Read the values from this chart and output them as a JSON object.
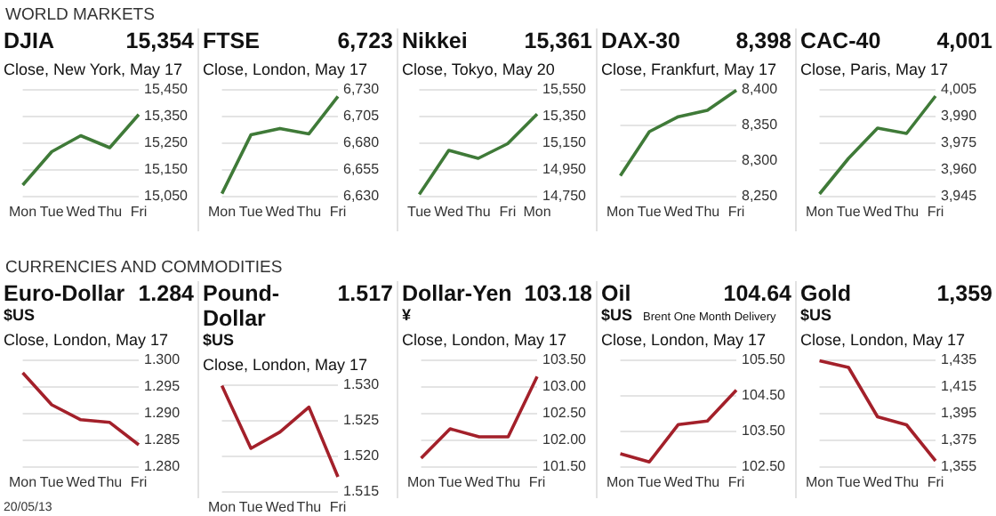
{
  "chart_data": [
    {
      "type": "line",
      "title": "DJIA",
      "subtitle": "Close, New York, May 17",
      "annotations": [
        "15,354",
        "WORLD MARKETS"
      ],
      "categories": [
        "Mon",
        "Tue",
        "Wed",
        "Thu",
        "Fri"
      ],
      "series": [
        {
          "color": "#3f7a38",
          "values": [
            15090,
            15215,
            15275,
            15230,
            15354
          ]
        }
      ],
      "ylim": [
        15050,
        15450
      ],
      "yticks": [
        {
          "value": 15050,
          "label": "15,050"
        },
        {
          "value": 15150,
          "label": "15,150"
        },
        {
          "value": 15250,
          "label": "15,250"
        },
        {
          "value": 15350,
          "label": "15,350"
        },
        {
          "value": 15450,
          "label": "15,450"
        }
      ],
      "grid": "y"
    },
    {
      "type": "line",
      "title": "FTSE",
      "subtitle": "Close, London, May 17",
      "annotations": [
        "6,723"
      ],
      "categories": [
        "Mon",
        "Tue",
        "Wed",
        "Thu",
        "Fri"
      ],
      "series": [
        {
          "color": "#3f7a38",
          "values": [
            6632,
            6687,
            6693,
            6688,
            6723
          ]
        }
      ],
      "ylim": [
        6630,
        6730
      ],
      "yticks": [
        {
          "value": 6630,
          "label": "6,630"
        },
        {
          "value": 6655,
          "label": "6,655"
        },
        {
          "value": 6680,
          "label": "6,680"
        },
        {
          "value": 6705,
          "label": "6,705"
        },
        {
          "value": 6730,
          "label": "6,730"
        }
      ],
      "grid": "y"
    },
    {
      "type": "line",
      "title": "Nikkei",
      "subtitle": "Close, Tokyo, May 20",
      "annotations": [
        "15,361"
      ],
      "categories": [
        "Tue",
        "Wed",
        "Thu",
        "Fri",
        "Mon"
      ],
      "series": [
        {
          "color": "#3f7a38",
          "values": [
            14760,
            15090,
            15030,
            15140,
            15361
          ]
        }
      ],
      "ylim": [
        14750,
        15550
      ],
      "yticks": [
        {
          "value": 14750,
          "label": "14,750"
        },
        {
          "value": 14950,
          "label": "14,950"
        },
        {
          "value": 15150,
          "label": "15,150"
        },
        {
          "value": 15350,
          "label": "15,350"
        },
        {
          "value": 15550,
          "label": "15,550"
        }
      ],
      "grid": "y"
    },
    {
      "type": "line",
      "title": "DAX-30",
      "subtitle": "Close, Frankfurt, May 17",
      "annotations": [
        "8,398"
      ],
      "categories": [
        "Mon",
        "Tue",
        "Wed",
        "Thu",
        "Fri"
      ],
      "series": [
        {
          "color": "#3f7a38",
          "values": [
            8278,
            8340,
            8361,
            8370,
            8398
          ]
        }
      ],
      "ylim": [
        8250,
        8400
      ],
      "yticks": [
        {
          "value": 8250,
          "label": "8,250"
        },
        {
          "value": 8300,
          "label": "8,300"
        },
        {
          "value": 8350,
          "label": "8,350"
        },
        {
          "value": 8400,
          "label": "8,400"
        }
      ],
      "grid": "y"
    },
    {
      "type": "line",
      "title": "CAC-40",
      "subtitle": "Close, Paris, May 17",
      "annotations": [
        "4,001"
      ],
      "categories": [
        "Mon",
        "Tue",
        "Wed",
        "Thu",
        "Fri"
      ],
      "series": [
        {
          "color": "#3f7a38",
          "values": [
            3946,
            3966,
            3983,
            3980,
            4001
          ]
        }
      ],
      "ylim": [
        3945,
        4005
      ],
      "yticks": [
        {
          "value": 3945,
          "label": "3,945"
        },
        {
          "value": 3960,
          "label": "3,960"
        },
        {
          "value": 3975,
          "label": "3,975"
        },
        {
          "value": 3990,
          "label": "3,990"
        },
        {
          "value": 4005,
          "label": "4,005"
        }
      ],
      "grid": "y"
    },
    {
      "type": "line",
      "title": "Euro-Dollar",
      "subtitle": "Close, London, May 17",
      "annotations": [
        "1.284",
        "$US",
        "CURRENCIES AND COMMODITIES",
        "20/05/13"
      ],
      "categories": [
        "Mon",
        "Tue",
        "Wed",
        "Thu",
        "Fri"
      ],
      "series": [
        {
          "color": "#a3202a",
          "values": [
            1.2975,
            1.2915,
            1.2887,
            1.2882,
            1.284
          ]
        }
      ],
      "ylim": [
        1.28,
        1.3
      ],
      "yticks": [
        {
          "value": 1.28,
          "label": "1.280"
        },
        {
          "value": 1.285,
          "label": "1.285"
        },
        {
          "value": 1.29,
          "label": "1.290"
        },
        {
          "value": 1.295,
          "label": "1.295"
        },
        {
          "value": 1.3,
          "label": "1.300"
        }
      ],
      "grid": "y"
    },
    {
      "type": "line",
      "title": "Pound-Dollar",
      "subtitle": "Close, London, May 17",
      "annotations": [
        "1.517",
        "$US"
      ],
      "categories": [
        "Mon",
        "Tue",
        "Wed",
        "Thu",
        "Fri"
      ],
      "series": [
        {
          "color": "#a3202a",
          "values": [
            1.5298,
            1.521,
            1.5233,
            1.5268,
            1.517
          ]
        }
      ],
      "ylim": [
        1.515,
        1.53
      ],
      "yticks": [
        {
          "value": 1.515,
          "label": "1.515"
        },
        {
          "value": 1.52,
          "label": "1.520"
        },
        {
          "value": 1.525,
          "label": "1.525"
        },
        {
          "value": 1.53,
          "label": "1.530"
        }
      ],
      "grid": "y"
    },
    {
      "type": "line",
      "title": "Dollar-Yen",
      "subtitle": "Close, London, May 17",
      "annotations": [
        "103.18",
        "¥"
      ],
      "categories": [
        "Mon",
        "Tue",
        "Wed",
        "Thu",
        "Fri"
      ],
      "series": [
        {
          "color": "#a3202a",
          "values": [
            101.65,
            102.2,
            102.05,
            102.05,
            103.18
          ]
        }
      ],
      "ylim": [
        101.5,
        103.5
      ],
      "yticks": [
        {
          "value": 101.5,
          "label": "101.50"
        },
        {
          "value": 102,
          "label": "102.00"
        },
        {
          "value": 102.5,
          "label": "102.50"
        },
        {
          "value": 103,
          "label": "103.00"
        },
        {
          "value": 103.5,
          "label": "103.50"
        }
      ],
      "grid": "y"
    },
    {
      "type": "line",
      "title": "Oil",
      "subtitle": "Close, London, May 17",
      "annotations": [
        "104.64",
        "$US",
        "Brent One Month Delivery"
      ],
      "categories": [
        "Mon",
        "Tue",
        "Wed",
        "Thu",
        "Fri"
      ],
      "series": [
        {
          "color": "#a3202a",
          "values": [
            102.85,
            102.62,
            103.67,
            103.77,
            104.64
          ]
        }
      ],
      "ylim": [
        102.5,
        105.5
      ],
      "yticks": [
        {
          "value": 102.5,
          "label": "102.50"
        },
        {
          "value": 103.5,
          "label": "103.50"
        },
        {
          "value": 104.5,
          "label": "104.50"
        },
        {
          "value": 105.5,
          "label": "105.50"
        }
      ],
      "grid": "y"
    },
    {
      "type": "line",
      "title": "Gold",
      "subtitle": "Close, London, May 17",
      "annotations": [
        "1,359",
        "$US"
      ],
      "categories": [
        "Mon",
        "Tue",
        "Wed",
        "Thu",
        "Fri"
      ],
      "series": [
        {
          "color": "#a3202a",
          "values": [
            1434,
            1429,
            1392,
            1386,
            1359
          ]
        }
      ],
      "ylim": [
        1355,
        1435
      ],
      "yticks": [
        {
          "value": 1355,
          "label": "1,355"
        },
        {
          "value": 1375,
          "label": "1,375"
        },
        {
          "value": 1395,
          "label": "1,395"
        },
        {
          "value": 1415,
          "label": "1,415"
        },
        {
          "value": 1435,
          "label": "1,435"
        }
      ],
      "grid": "y"
    }
  ]
}
